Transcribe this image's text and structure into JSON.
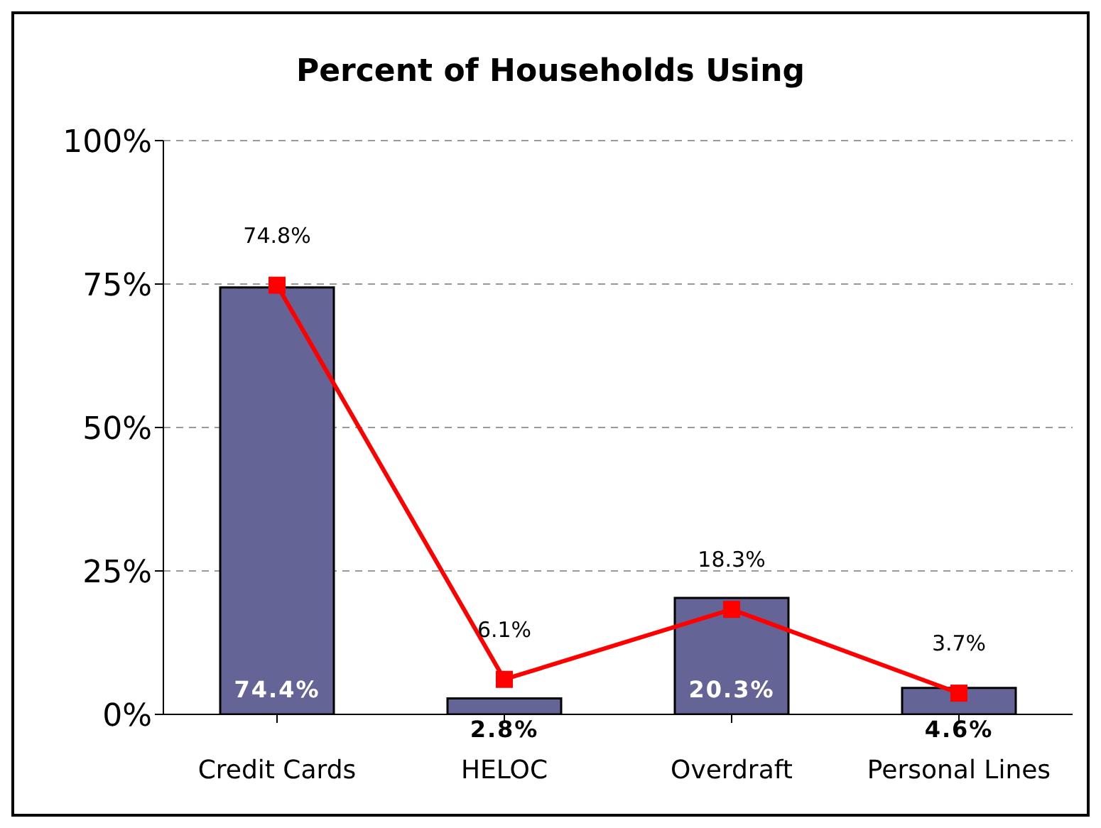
{
  "chart_data": {
    "type": "bar",
    "title": "Percent of Households Using",
    "categories": [
      "Credit Cards",
      "HELOC",
      "Overdraft",
      "Personal Lines"
    ],
    "series": [
      {
        "color": "#646496",
        "values": [
          74.4,
          2.8,
          20.3,
          4.6
        ],
        "value_labels": [
          "74.4%",
          "2.8%",
          "20.3%",
          "4.6%"
        ]
      },
      {
        "type": "line",
        "color": "#ff0000",
        "values": [
          74.8,
          6.1,
          18.3,
          3.7
        ],
        "value_labels": [
          "74.8%",
          "6.1%",
          "18.3%",
          "3.7%"
        ],
        "marker": "square"
      }
    ],
    "ylim": [
      0,
      100
    ],
    "yticks": [
      {
        "value": 0,
        "label": "0%"
      },
      {
        "value": 25,
        "label": "25%"
      },
      {
        "value": 50,
        "label": "50%"
      },
      {
        "value": 75,
        "label": "75%"
      },
      {
        "value": 100,
        "label": "100%"
      }
    ],
    "grid": "y",
    "legend": false
  }
}
